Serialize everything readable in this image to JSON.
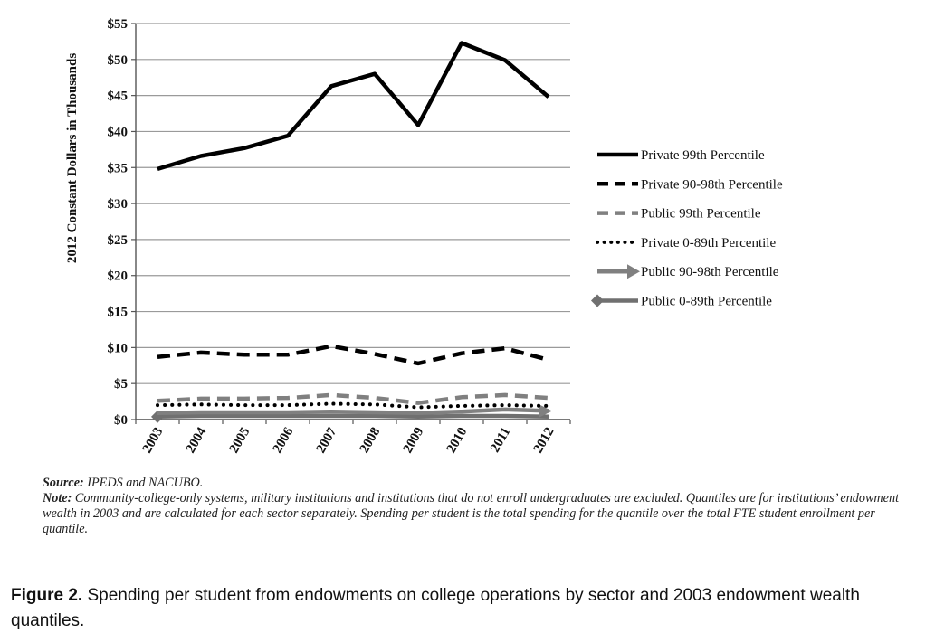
{
  "chart_data": {
    "type": "line",
    "ylabel": "2012 Constant Dollars in Thousands",
    "xlabel": "",
    "categories": [
      "2003",
      "2004",
      "2005",
      "2006",
      "2007",
      "2008",
      "2009",
      "2010",
      "2011",
      "2012"
    ],
    "ylim": [
      0,
      55
    ],
    "yticks": [
      {
        "value": 0,
        "label": "$0"
      },
      {
        "value": 5,
        "label": "$5"
      },
      {
        "value": 10,
        "label": "$10"
      },
      {
        "value": 15,
        "label": "$15"
      },
      {
        "value": 20,
        "label": "$20"
      },
      {
        "value": 25,
        "label": "$25"
      },
      {
        "value": 30,
        "label": "$30"
      },
      {
        "value": 35,
        "label": "$35"
      },
      {
        "value": 40,
        "label": "$40"
      },
      {
        "value": 45,
        "label": "$45"
      },
      {
        "value": 50,
        "label": "$50"
      },
      {
        "value": 55,
        "label": "$55"
      }
    ],
    "grid": true,
    "legend_position": "right",
    "series": [
      {
        "name": "Private 99th Percentile",
        "style": "solid",
        "color": "#000000",
        "values": [
          34.8,
          36.6,
          37.7,
          39.4,
          46.3,
          48.0,
          40.9,
          52.3,
          49.9,
          44.8
        ]
      },
      {
        "name": "Private 90-98th Percentile",
        "style": "dashed",
        "color": "#000000",
        "values": [
          8.7,
          9.3,
          9.0,
          9.0,
          10.2,
          9.1,
          7.8,
          9.2,
          9.9,
          8.3
        ]
      },
      {
        "name": "Public 99th Percentile",
        "style": "dashed",
        "color": "#808080",
        "values": [
          2.6,
          2.9,
          2.9,
          3.0,
          3.4,
          3.0,
          2.3,
          3.1,
          3.4,
          3.0
        ]
      },
      {
        "name": "Private 0-89th Percentile",
        "style": "dotted",
        "color": "#000000",
        "values": [
          2.0,
          2.1,
          2.0,
          2.0,
          2.2,
          2.1,
          1.7,
          1.9,
          2.0,
          1.9
        ]
      },
      {
        "name": "Public 90-98th Percentile",
        "style": "arrow",
        "color": "#808080",
        "values": [
          0.9,
          1.0,
          1.0,
          1.0,
          1.1,
          1.0,
          0.9,
          1.1,
          1.4,
          1.2
        ]
      },
      {
        "name": "Public 0-89th Percentile",
        "style": "diamond",
        "color": "#707070",
        "values": [
          0.4,
          0.5,
          0.5,
          0.5,
          0.5,
          0.5,
          0.4,
          0.5,
          0.5,
          0.4
        ]
      }
    ]
  },
  "notes": {
    "source_label": "Source:",
    "source_text": " IPEDS and NACUBO.",
    "note_label": "Note:",
    "note_text": " Community-college-only systems, military institutions and institutions that do not enroll undergraduates are excluded. Quantiles are for institutions’ endowment wealth in 2003 and are calculated for each sector separately.  Spending per student is the total spending for the quantile over the total FTE student enrollment per quantile."
  },
  "caption": {
    "label": "Figure 2.",
    "text": " Spending per student from endowments on college operations by sector and 2003 endowment wealth quantiles."
  }
}
